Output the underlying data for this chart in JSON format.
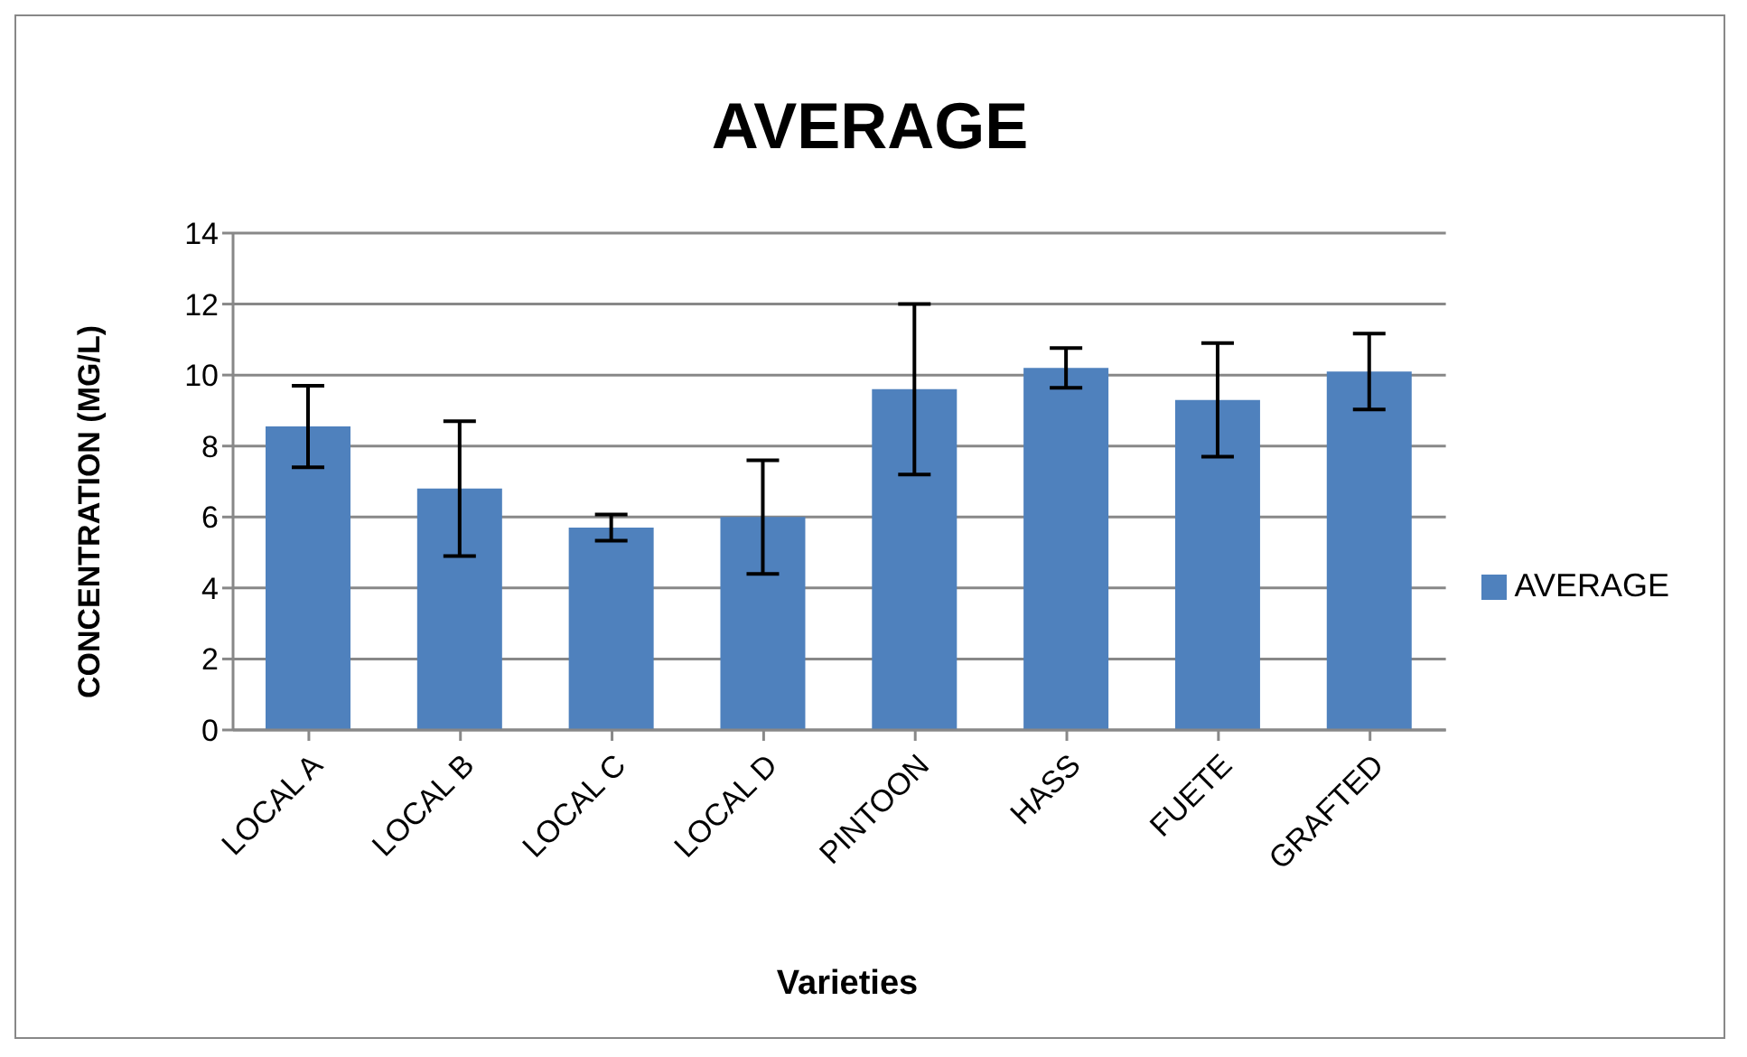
{
  "chart_data": {
    "type": "bar",
    "title": "AVERAGE",
    "xlabel": "Varieties",
    "ylabel": "CONCENTRATION (MG/L)",
    "categories": [
      "LOCAL A",
      "LOCAL B",
      "LOCAL C",
      "LOCAL D",
      "PINTOON",
      "HASS",
      "FUETE",
      "GRAFTED"
    ],
    "series": [
      {
        "name": "AVERAGE",
        "color": "#4f81bd",
        "values": [
          8.55,
          6.8,
          5.7,
          6.0,
          9.6,
          10.2,
          9.3,
          10.1
        ],
        "errors": [
          1.15,
          1.9,
          0.37,
          1.6,
          2.4,
          0.56,
          1.6,
          1.07
        ]
      }
    ],
    "ylim": [
      0,
      14
    ],
    "yticks": [
      0,
      2,
      4,
      6,
      8,
      10,
      12,
      14
    ],
    "grid": "y",
    "legend": "right"
  }
}
